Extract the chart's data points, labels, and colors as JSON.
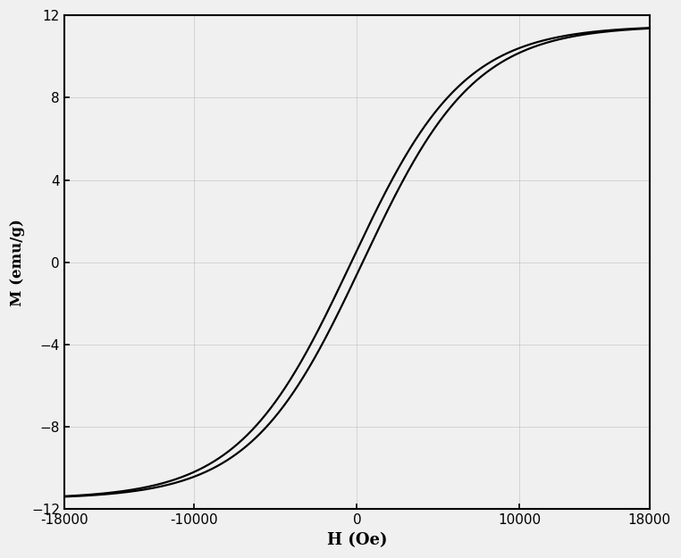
{
  "title": "",
  "xlabel": "H (Oe)",
  "ylabel": "M (emu/g)",
  "xlim": [
    -18000,
    18000
  ],
  "ylim": [
    -12,
    12
  ],
  "xticks": [
    -18000,
    -10000,
    0,
    10000,
    18000
  ],
  "yticks": [
    -12,
    -8,
    -4,
    0,
    4,
    8,
    12
  ],
  "line_color": "#000000",
  "background_color": "#f0f0f0",
  "Ms": 11.5,
  "Hc": 350,
  "alpha": 0.00028,
  "line_width": 1.6,
  "grid": true
}
